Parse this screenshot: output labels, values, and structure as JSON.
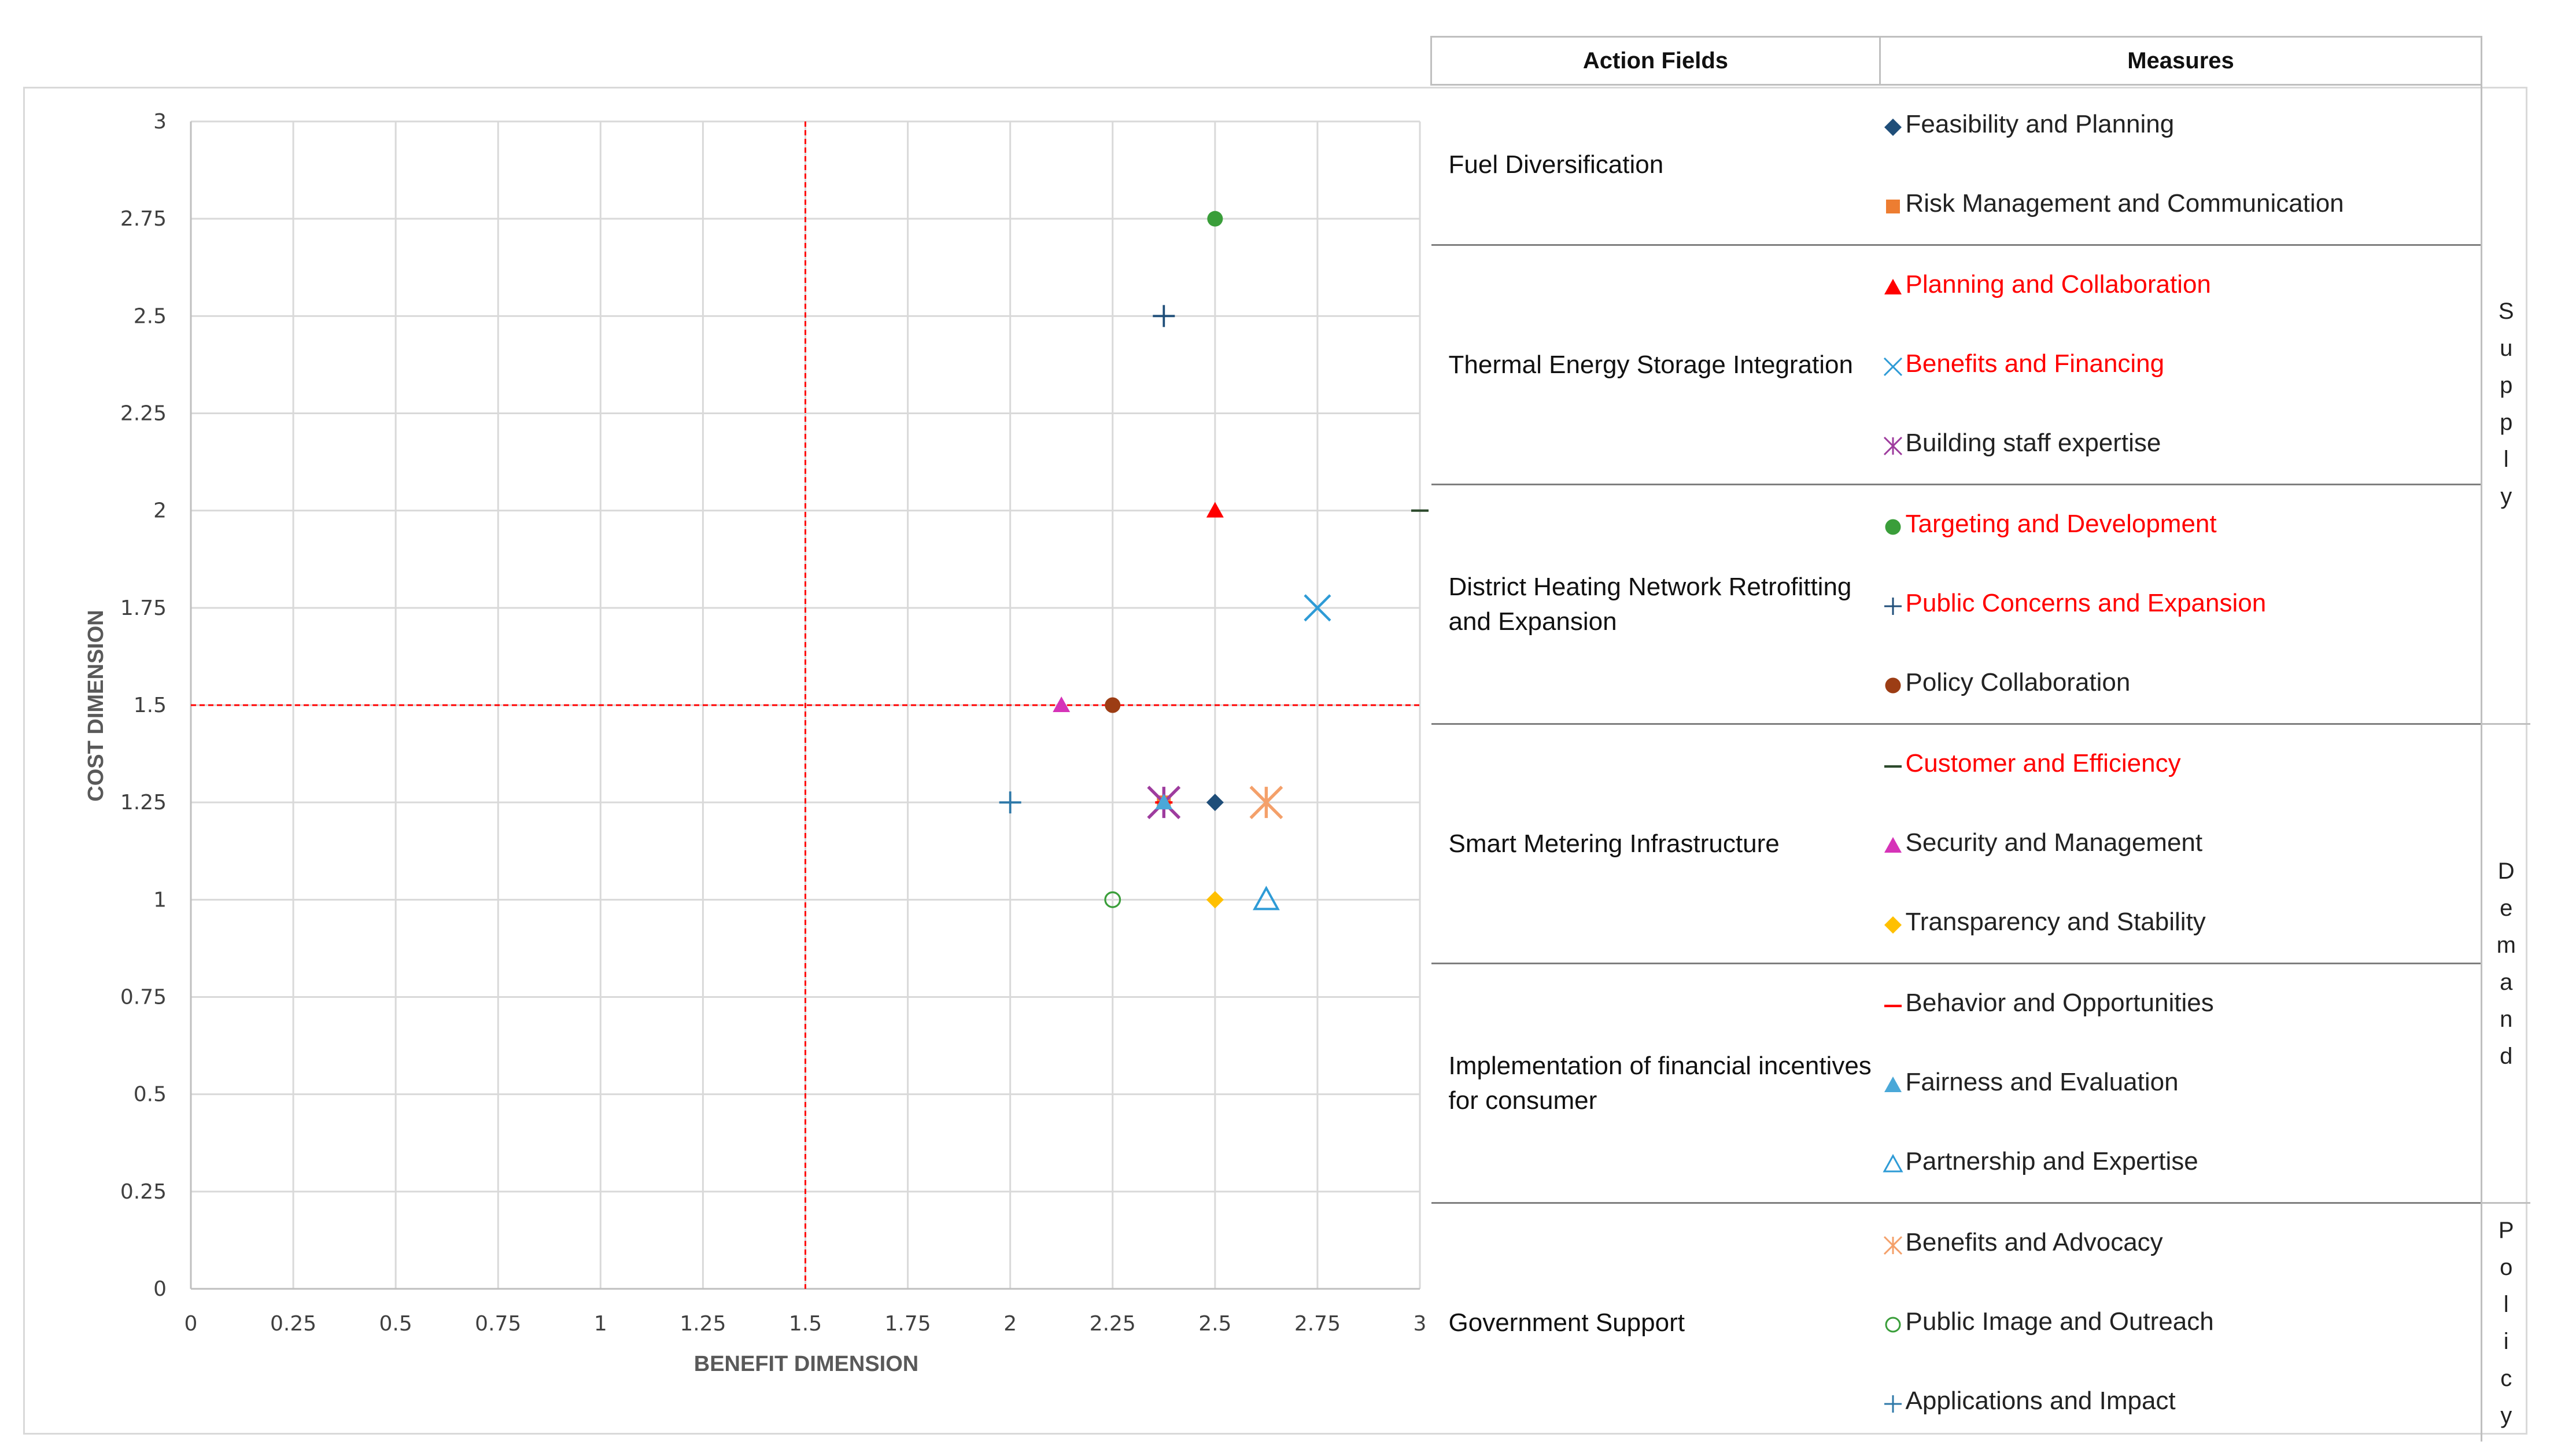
{
  "chart_data": {
    "type": "scatter",
    "title": "",
    "xlabel": "BENEFIT DIMENSION",
    "ylabel": "COST DIMENSION",
    "xlim": [
      0,
      3
    ],
    "ylim": [
      0,
      3
    ],
    "x_ticks": [
      "0",
      "0.25",
      "0.5",
      "0.75",
      "1",
      "1.25",
      "1.5",
      "1.75",
      "2",
      "2.25",
      "2.5",
      "2.75",
      "3"
    ],
    "y_ticks": [
      "0",
      "0.25",
      "0.5",
      "0.75",
      "1",
      "1.25",
      "1.5",
      "1.75",
      "2",
      "2.25",
      "2.5",
      "2.75",
      "3"
    ],
    "grid": true,
    "reference_lines": {
      "x": 1.5,
      "y": 1.5,
      "color": "#ff0000"
    },
    "series": [
      {
        "name": "Feasibility and Planning",
        "marker": "diamond",
        "color": "#1f4e79",
        "x": 2.5,
        "y": 1.25
      },
      {
        "name": "Risk Management and Communication",
        "marker": "square",
        "color": "#ed7d31",
        "x": 2.375,
        "y": 1.25
      },
      {
        "name": "Planning and Collaboration",
        "marker": "triangle",
        "color": "#ff0000",
        "x": 2.5,
        "y": 2.0
      },
      {
        "name": "Benefits and Financing",
        "marker": "x",
        "color": "#2e9bd6",
        "x": 2.75,
        "y": 1.75
      },
      {
        "name": "Building staff expertise",
        "marker": "asterisk",
        "color": "#9e3c9e",
        "x": 2.375,
        "y": 1.25
      },
      {
        "name": "Targeting and Development",
        "marker": "circle",
        "color": "#3a9e3a",
        "x": 2.5,
        "y": 2.75
      },
      {
        "name": "Public Concerns and Expansion",
        "marker": "plus",
        "color": "#1f4e79",
        "x": 2.375,
        "y": 2.5
      },
      {
        "name": "Policy Collaboration",
        "marker": "circle",
        "color": "#9c3d14",
        "x": 2.25,
        "y": 1.5
      },
      {
        "name": "Customer and Efficiency",
        "marker": "dash",
        "color": "#2d4a2d",
        "x": 3.0,
        "y": 2.0
      },
      {
        "name": "Security and Management",
        "marker": "triangle",
        "color": "#d633b8",
        "x": 2.125,
        "y": 1.5
      },
      {
        "name": "Transparency and Stability",
        "marker": "diamond",
        "color": "#ffc000",
        "x": 2.5,
        "y": 1.0
      },
      {
        "name": "Behavior and Opportunities",
        "marker": "dash",
        "color": "#ff0000",
        "x": 2.375,
        "y": 1.25
      },
      {
        "name": "Fairness and Evaluation",
        "marker": "triangle",
        "color": "#4aa8d8",
        "x": 2.375,
        "y": 1.25
      },
      {
        "name": "Partnership and Expertise",
        "marker": "triangle-open",
        "color": "#2e9bd6",
        "x": 2.625,
        "y": 1.0
      },
      {
        "name": "Benefits and Advocacy",
        "marker": "asterisk",
        "color": "#f4a06a",
        "x": 2.625,
        "y": 1.25
      },
      {
        "name": "Public Image and Outreach",
        "marker": "circle-open",
        "color": "#3a9e3a",
        "x": 2.25,
        "y": 1.0
      },
      {
        "name": "Applications and Impact",
        "marker": "plus",
        "color": "#2e78a8",
        "x": 2.0,
        "y": 1.25
      }
    ]
  },
  "legend": {
    "header_action": "Action Fields",
    "header_measures": "Measures",
    "groups": [
      {
        "field": "Fuel Diversification",
        "measures": [
          {
            "label": "Feasibility and Planning",
            "red": false,
            "series": 0
          },
          {
            "label": "Risk Management and Communication",
            "red": false,
            "series": 1
          }
        ]
      },
      {
        "field": "Thermal Energy Storage Integration",
        "measures": [
          {
            "label": "Planning and Collaboration",
            "red": true,
            "series": 2
          },
          {
            "label": "Benefits and Financing",
            "red": true,
            "series": 3
          },
          {
            "label": "Building staff expertise",
            "red": false,
            "series": 4
          }
        ]
      },
      {
        "field": "District Heating Network Retrofitting and Expansion",
        "measures": [
          {
            "label": "Targeting and Development",
            "red": true,
            "series": 5
          },
          {
            "label": "Public Concerns and Expansion",
            "red": true,
            "series": 6
          },
          {
            "label": "Policy Collaboration",
            "red": false,
            "series": 7
          }
        ]
      },
      {
        "field": "Smart Metering Infrastructure",
        "measures": [
          {
            "label": "Customer and Efficiency",
            "red": true,
            "series": 8
          },
          {
            "label": "Security and Management",
            "red": false,
            "series": 9
          },
          {
            "label": "Transparency and Stability",
            "red": false,
            "series": 10
          }
        ]
      },
      {
        "field": "Implementation of financial incentives for consumer",
        "measures": [
          {
            "label": "Behavior and Opportunities",
            "red": false,
            "series": 11
          },
          {
            "label": "Fairness and Evaluation",
            "red": false,
            "series": 12
          },
          {
            "label": "Partnership and Expertise",
            "red": false,
            "series": 13
          }
        ]
      },
      {
        "field": "Government Support",
        "measures": [
          {
            "label": "Benefits and Advocacy",
            "red": false,
            "series": 14
          },
          {
            "label": "Public Image and Outreach",
            "red": false,
            "series": 15
          },
          {
            "label": "Applications and Impact",
            "red": false,
            "series": 16
          }
        ]
      }
    ],
    "categories": [
      {
        "label": "Supply",
        "rows": 8
      },
      {
        "label": "Demand",
        "rows": 6
      },
      {
        "label": "Policy",
        "rows": 3
      }
    ]
  }
}
